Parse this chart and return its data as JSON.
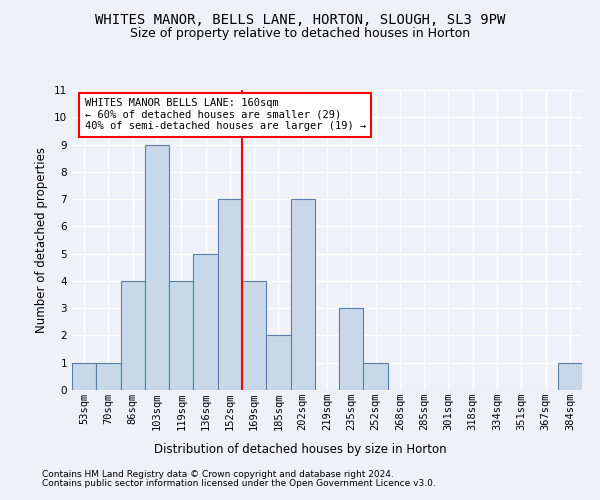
{
  "title": "WHITES MANOR, BELLS LANE, HORTON, SLOUGH, SL3 9PW",
  "subtitle": "Size of property relative to detached houses in Horton",
  "xlabel": "Distribution of detached houses by size in Horton",
  "ylabel": "Number of detached properties",
  "bin_labels": [
    "53sqm",
    "70sqm",
    "86sqm",
    "103sqm",
    "119sqm",
    "136sqm",
    "152sqm",
    "169sqm",
    "185sqm",
    "202sqm",
    "219sqm",
    "235sqm",
    "252sqm",
    "268sqm",
    "285sqm",
    "301sqm",
    "318sqm",
    "334sqm",
    "351sqm",
    "367sqm",
    "384sqm"
  ],
  "bin_values": [
    1,
    1,
    4,
    9,
    4,
    5,
    7,
    4,
    2,
    7,
    0,
    3,
    1,
    0,
    0,
    0,
    0,
    0,
    0,
    0,
    1
  ],
  "bar_color": "#c8d8e8",
  "bar_edge_color": "#5a7fa8",
  "vline_x": 6.5,
  "annotation_title": "WHITES MANOR BELLS LANE: 160sqm",
  "annotation_line1": "← 60% of detached houses are smaller (29)",
  "annotation_line2": "40% of semi-detached houses are larger (19) →",
  "ylim": [
    0,
    11
  ],
  "yticks": [
    0,
    1,
    2,
    3,
    4,
    5,
    6,
    7,
    8,
    9,
    10,
    11
  ],
  "footnote1": "Contains HM Land Registry data © Crown copyright and database right 2024.",
  "footnote2": "Contains public sector information licensed under the Open Government Licence v3.0.",
  "background_color": "#eef2f8",
  "grid_color": "#ffffff",
  "title_fontsize": 10,
  "subtitle_fontsize": 9,
  "axis_label_fontsize": 8.5,
  "tick_fontsize": 7.5,
  "annotation_fontsize": 7.5,
  "footnote_fontsize": 6.5
}
